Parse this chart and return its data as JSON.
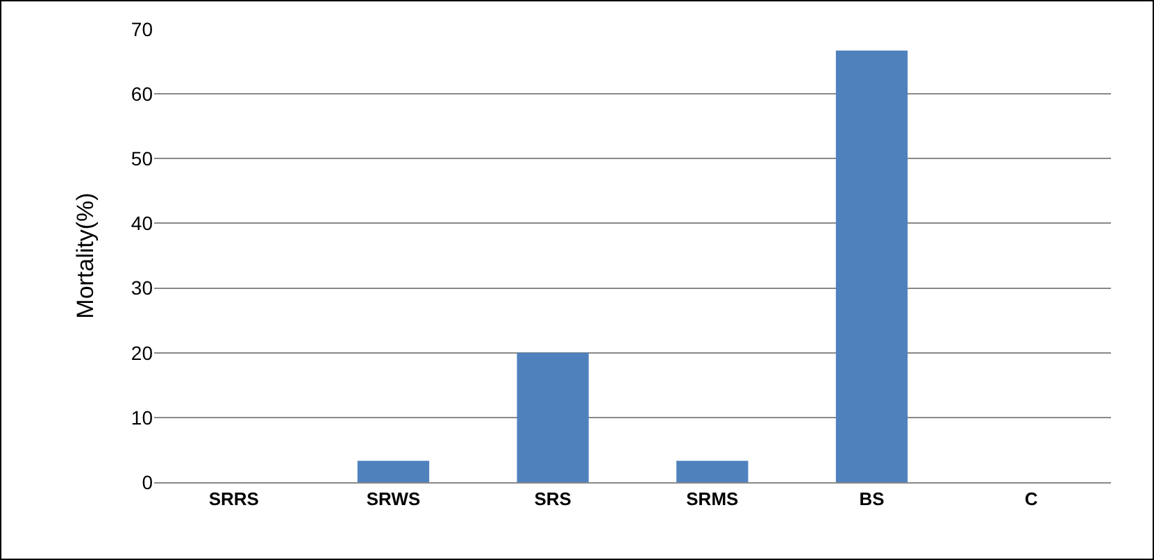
{
  "chart_data": {
    "type": "bar",
    "ylabel": "Mortality(%)",
    "categories": [
      "SRRS",
      "SRWS",
      "SRS",
      "SRMS",
      "BS",
      "C"
    ],
    "values": [
      0,
      3.3,
      20,
      3.3,
      66.7,
      0
    ],
    "color": "#4f81bd",
    "ylim": [
      0,
      70
    ],
    "yticks": [
      0,
      10,
      20,
      30,
      40,
      50,
      60,
      70
    ],
    "grid": "y"
  }
}
